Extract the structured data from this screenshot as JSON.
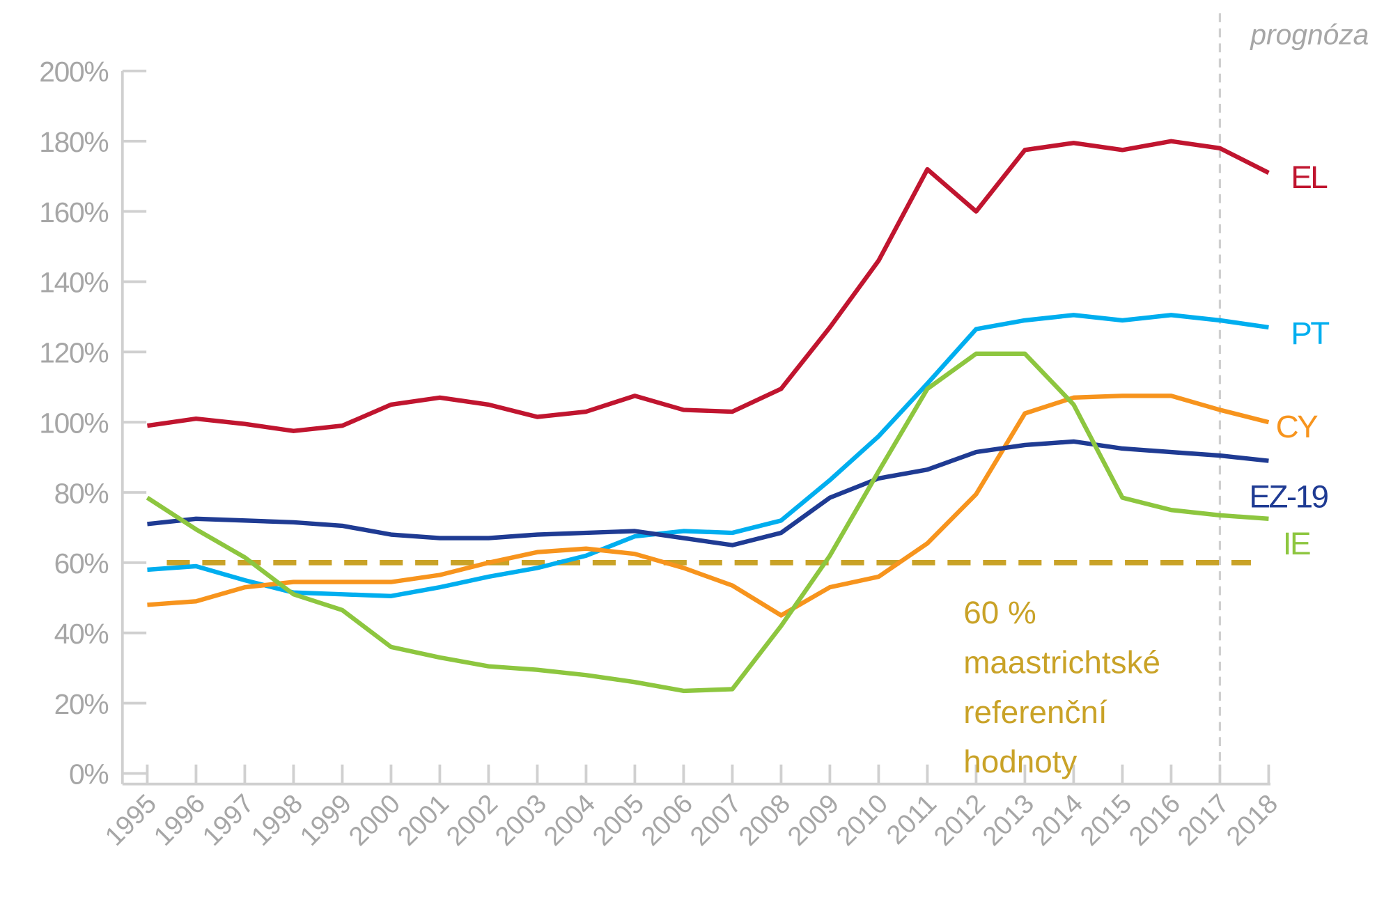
{
  "chart_data": {
    "type": "line",
    "title": "",
    "xlabel": "",
    "ylabel": "",
    "ylim": [
      0,
      200
    ],
    "yticks": [
      "0%",
      "20%",
      "40%",
      "60%",
      "80%",
      "100%",
      "120%",
      "140%",
      "160%",
      "180%",
      "200%"
    ],
    "x": [
      "1995",
      "1996",
      "1997",
      "1998",
      "1999",
      "2000",
      "2001",
      "2002",
      "2003",
      "2004",
      "2005",
      "2006",
      "2007",
      "2008",
      "2009",
      "2010",
      "2011",
      "2012",
      "2013",
      "2014",
      "2015",
      "2016",
      "2017",
      "2018"
    ],
    "series": [
      {
        "name": "EL",
        "color": "#c0152f",
        "values": [
          99,
          101,
          99.5,
          97.5,
          99,
          105,
          107,
          105,
          101.5,
          103,
          107.5,
          103.5,
          103,
          109.5,
          127,
          146,
          172,
          160,
          177.5,
          179.5,
          177.5,
          180,
          178,
          171
        ]
      },
      {
        "name": "PT",
        "color": "#00aeef",
        "values": [
          58,
          59,
          55,
          51.5,
          51,
          50.5,
          53,
          56,
          58.5,
          62,
          67.5,
          69,
          68.5,
          72,
          83.5,
          96,
          111,
          126.5,
          129,
          130.5,
          129,
          130.5,
          129,
          127
        ]
      },
      {
        "name": "CY",
        "color": "#f7941d",
        "values": [
          48,
          49,
          53,
          54.5,
          54.5,
          54.5,
          56.5,
          60,
          63,
          64,
          62.5,
          58.5,
          53.5,
          45,
          53,
          56,
          65.5,
          79.5,
          102.5,
          107,
          107.5,
          107.5,
          103.5,
          100
        ]
      },
      {
        "name": "EZ-19",
        "color": "#1f3b93",
        "values": [
          71,
          72.5,
          72,
          71.5,
          70.5,
          68,
          67,
          67,
          68,
          68.5,
          69,
          67,
          65,
          68.5,
          78.5,
          84,
          86.5,
          91.5,
          93.5,
          94.5,
          92.5,
          91.5,
          90.5,
          89
        ]
      },
      {
        "name": "IE",
        "color": "#8dc63f",
        "values": [
          78.5,
          69.5,
          61.5,
          51,
          46.5,
          36,
          33,
          30.5,
          29.5,
          28,
          26,
          23.5,
          24,
          42,
          62,
          86,
          109.5,
          119.5,
          119.5,
          105,
          78.5,
          75,
          73.5,
          72.5
        ]
      }
    ],
    "reference": {
      "value": 60,
      "color": "#c9a227",
      "label_lines": [
        "60 %",
        "maastrichtské",
        "referenční",
        "hodnoty"
      ]
    },
    "forecast": {
      "start_after": "2017",
      "label": "prognóza"
    },
    "grid": false,
    "legend": "inline-right"
  }
}
